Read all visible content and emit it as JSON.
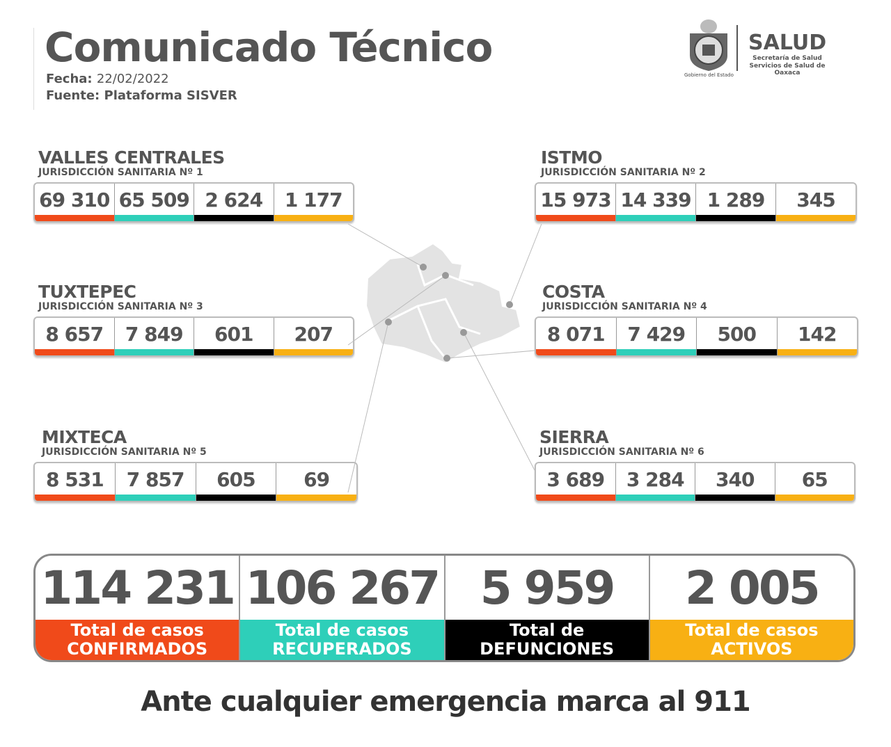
{
  "header": {
    "title": "Comunicado Técnico",
    "fecha_label": "Fecha:",
    "fecha": "22/02/2022",
    "fuente_label": "Fuente:",
    "fuente": "Plataforma SISVER"
  },
  "logo": {
    "brand": "SALUD",
    "line1": "Secretaría de Salud",
    "line2": "Servicios de Salud de Oaxaca",
    "gov": "Gobierno del Estado"
  },
  "colors": {
    "confirmados": "#f04a1a",
    "recuperados": "#2ecfb9",
    "defunciones": "#000000",
    "activos": "#f8b013"
  },
  "regions": [
    {
      "name": "VALLES CENTRALES",
      "jurisdiccion": "JURISDICCIÓN SANITARIA Nº 1",
      "values": [
        "69 310",
        "65 509",
        "2 624",
        "1 177"
      ]
    },
    {
      "name": "ISTMO",
      "jurisdiccion": "JURISDICCIÓN SANITARIA Nº 2",
      "values": [
        "15 973",
        "14 339",
        "1 289",
        "345"
      ]
    },
    {
      "name": "TUXTEPEC",
      "jurisdiccion": "JURISDICCIÓN SANITARIA Nº 3",
      "values": [
        "8 657",
        "7 849",
        "601",
        "207"
      ]
    },
    {
      "name": "COSTA",
      "jurisdiccion": "JURISDICCIÓN SANITARIA Nº 4",
      "values": [
        "8 071",
        "7 429",
        "500",
        "142"
      ]
    },
    {
      "name": "MIXTECA",
      "jurisdiccion": "JURISDICCIÓN SANITARIA Nº 5",
      "values": [
        "8 531",
        "7 857",
        "605",
        "69"
      ]
    },
    {
      "name": "SIERRA",
      "jurisdiccion": "JURISDICCIÓN SANITARIA Nº 6",
      "values": [
        "3 689",
        "3 284",
        "340",
        "65"
      ]
    }
  ],
  "totals": [
    {
      "value": "114 231",
      "line1": "Total de casos",
      "line2": "CONFIRMADOS"
    },
    {
      "value": "106 267",
      "line1": "Total de casos",
      "line2": "RECUPERADOS"
    },
    {
      "value": "5 959",
      "line1": "Total de",
      "line2": "DEFUNCIONES"
    },
    {
      "value": "2 005",
      "line1": "Total de casos",
      "line2": "ACTIVOS"
    }
  ],
  "footer": "Ante cualquier emergencia marca al 911"
}
